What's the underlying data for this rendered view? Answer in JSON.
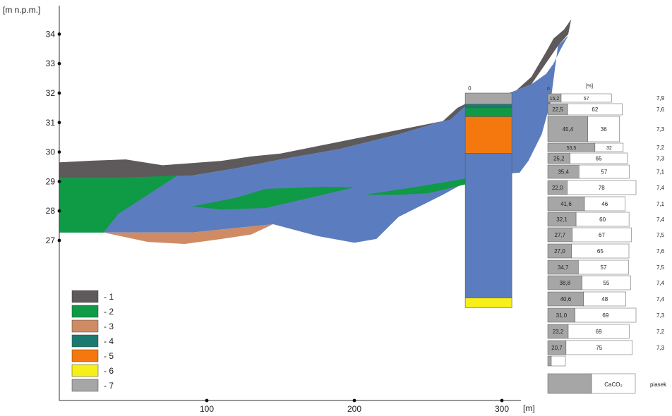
{
  "chart_data": {
    "type": "area",
    "title": "",
    "xlabel": "[m]",
    "ylabel": "[m n.p.m.]",
    "xlim": [
      0,
      330
    ],
    "ylim": [
      24.5,
      34.9
    ],
    "x_ticks": [
      "100",
      "200",
      "300"
    ],
    "y_ticks": [
      "27",
      "28",
      "29",
      "30",
      "31",
      "32",
      "33",
      "34"
    ],
    "colors": {
      "1": "#5e5a5b",
      "2": "#0f9a45",
      "3": "#cf8b63",
      "4": "#1a7a6f",
      "5": "#f4780d",
      "6": "#f7ef1a",
      "7": "#a6a6a6",
      "main": "#5b7dbf"
    },
    "legend": {
      "placement": "bottom-left",
      "items": [
        "- 1",
        "- 2",
        "- 3",
        "- 4",
        "- 5",
        "- 6",
        "- 7"
      ]
    },
    "cross_section": {
      "layer_1_top": [
        [
          0,
          29.65
        ],
        [
          20,
          29.7
        ],
        [
          45,
          29.75
        ],
        [
          70,
          29.55
        ],
        [
          110,
          29.7
        ],
        [
          130,
          29.85
        ],
        [
          150,
          29.95
        ],
        [
          190,
          30.35
        ],
        [
          230,
          30.75
        ],
        [
          265,
          31.1
        ],
        [
          275,
          31.55
        ],
        [
          300,
          31.85
        ],
        [
          310,
          32.1
        ],
        [
          320,
          32.55
        ],
        [
          330,
          33.4
        ],
        [
          335,
          33.85
        ],
        [
          342,
          34.15
        ],
        [
          347,
          34.5
        ],
        [
          345,
          34.0
        ],
        [
          338,
          33.6
        ],
        [
          320,
          32.3
        ],
        [
          300,
          31.9
        ],
        [
          280,
          31.75
        ],
        [
          270,
          31.5
        ],
        [
          260,
          31.05
        ],
        [
          230,
          30.6
        ],
        [
          190,
          30.1
        ],
        [
          150,
          29.75
        ],
        [
          120,
          29.45
        ],
        [
          90,
          29.2
        ],
        [
          40,
          29.12
        ],
        [
          0,
          29.12
        ]
      ],
      "main_area": [
        [
          0,
          29.12
        ],
        [
          40,
          29.12
        ],
        [
          90,
          29.2
        ],
        [
          120,
          29.45
        ],
        [
          150,
          29.75
        ],
        [
          190,
          30.1
        ],
        [
          230,
          30.6
        ],
        [
          260,
          31.05
        ],
        [
          270,
          31.5
        ],
        [
          280,
          31.75
        ],
        [
          300,
          31.9
        ],
        [
          320,
          32.3
        ],
        [
          330,
          32.65
        ],
        [
          335,
          33.0
        ],
        [
          340,
          33.5
        ],
        [
          345,
          33.95
        ],
        [
          338,
          33.6
        ],
        [
          333,
          31.7
        ],
        [
          327,
          30.6
        ],
        [
          318,
          29.7
        ],
        [
          312,
          29.3
        ],
        [
          300,
          29.25
        ],
        [
          280,
          29.1
        ],
        [
          260,
          28.55
        ],
        [
          230,
          27.8
        ],
        [
          215,
          27.05
        ],
        [
          200,
          26.92
        ],
        [
          175,
          27.15
        ],
        [
          145,
          27.55
        ],
        [
          125,
          27.45
        ],
        [
          90,
          27.27
        ],
        [
          60,
          27.27
        ],
        [
          40,
          27.27
        ],
        [
          30,
          27.27
        ],
        [
          0,
          27.27
        ]
      ],
      "layer_2_left": [
        [
          0,
          29.12
        ],
        [
          40,
          29.12
        ],
        [
          80,
          29.2
        ],
        [
          60,
          28.55
        ],
        [
          40,
          27.9
        ],
        [
          30,
          27.27
        ],
        [
          0,
          27.27
        ]
      ],
      "layer_2_lens_a": [
        [
          90,
          28.15
        ],
        [
          120,
          28.45
        ],
        [
          140,
          28.75
        ],
        [
          180,
          28.82
        ],
        [
          200,
          28.8
        ],
        [
          170,
          28.45
        ],
        [
          140,
          28.1
        ],
        [
          110,
          28.05
        ]
      ],
      "layer_2_lens_b": [
        [
          207,
          28.55
        ],
        [
          240,
          28.8
        ],
        [
          270,
          29.05
        ],
        [
          285,
          29.2
        ],
        [
          275,
          28.9
        ],
        [
          250,
          28.6
        ],
        [
          230,
          28.55
        ]
      ],
      "layer_3": [
        [
          30,
          27.27
        ],
        [
          90,
          27.27
        ],
        [
          125,
          27.45
        ],
        [
          145,
          27.55
        ],
        [
          130,
          27.2
        ],
        [
          110,
          27.05
        ],
        [
          85,
          26.88
        ],
        [
          60,
          26.95
        ]
      ]
    },
    "borehole": {
      "x": 290,
      "top_label": "0",
      "layers": [
        {
          "layer": "7",
          "top": 32.0,
          "bottom": 31.62
        },
        {
          "layer": "4",
          "top": 31.62,
          "bottom": 31.5
        },
        {
          "layer": "2",
          "top": 31.5,
          "bottom": 31.2
        },
        {
          "layer": "5",
          "top": 31.2,
          "bottom": 29.95
        },
        {
          "layer": "main",
          "top": 29.95,
          "bottom": 25.05
        },
        {
          "layer": "6",
          "top": 25.05,
          "bottom": 24.72
        }
      ]
    },
    "composition_panel": {
      "unit_label": "[%]",
      "zero_label": "0",
      "legend_label": "CaCO₃",
      "legend_label_2": "piasek",
      "rows": [
        {
          "gray": "15,2",
          "white": "57",
          "right": "7,9"
        },
        {
          "gray": "22,5",
          "white": "62",
          "right": "7,6"
        },
        {
          "gray": "45,4",
          "white": "36",
          "right": "7,3"
        },
        {
          "gray": "53,5",
          "white": "32",
          "right": "7,2"
        },
        {
          "gray": "25,2",
          "white": "65",
          "right": "7,3"
        },
        {
          "gray": "35,4",
          "white": "57",
          "right": "7,1"
        },
        {
          "gray": "22,0",
          "white": "78",
          "right": "7,4"
        },
        {
          "gray": "41,6",
          "white": "46",
          "right": "7,1"
        },
        {
          "gray": "32,1",
          "white": "60",
          "right": "7,4"
        },
        {
          "gray": "27,7",
          "white": "67",
          "right": "7,5"
        },
        {
          "gray": "27,0",
          "white": "65",
          "right": "7,6"
        },
        {
          "gray": "34,7",
          "white": "57",
          "right": "7,5"
        },
        {
          "gray": "38,8",
          "white": "55",
          "right": "7,4"
        },
        {
          "gray": "40,6",
          "white": "48",
          "right": "7,4"
        },
        {
          "gray": "31,0",
          "white": "69",
          "right": "7,3"
        },
        {
          "gray": "23,2",
          "white": "69",
          "right": "7,2"
        },
        {
          "gray": "20,7",
          "white": "75",
          "right": "7,3"
        },
        {
          "gray": "",
          "white": "",
          "right": ""
        }
      ]
    }
  }
}
